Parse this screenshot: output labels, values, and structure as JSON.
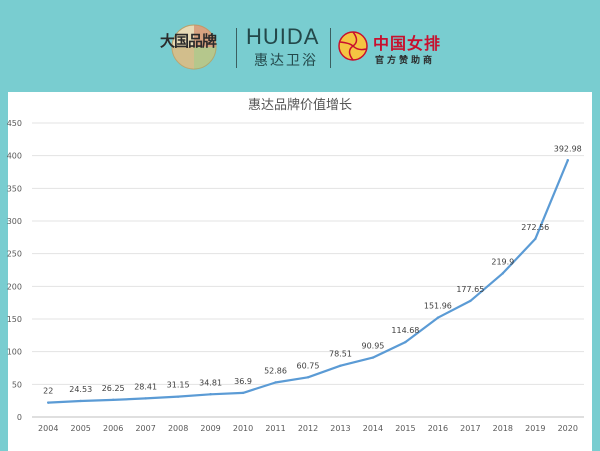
{
  "header": {
    "brand_seal_text": "大国品牌",
    "huida_logo": "HUIDA",
    "huida_cn": "惠达卫浴",
    "sponsor_main": "中国女排",
    "sponsor_sub": "官方赞助商",
    "icons": [
      "brand-seal-icon",
      "volleyball-emblem-icon"
    ]
  },
  "colors": {
    "background": "#79cdd0",
    "line": "#5b9bd5",
    "sponsor_red": "#c8102e"
  },
  "chart_data": {
    "type": "line",
    "title": "惠达品牌价值增长",
    "xlabel": "",
    "ylabel": "",
    "categories": [
      "2004",
      "2005",
      "2006",
      "2007",
      "2008",
      "2009",
      "2010",
      "2011",
      "2012",
      "2013",
      "2014",
      "2015",
      "2016",
      "2017",
      "2018",
      "2019",
      "2020"
    ],
    "values": [
      22,
      24.53,
      26.25,
      28.41,
      31.15,
      34.81,
      36.9,
      52.86,
      60.75,
      78.51,
      90.95,
      114.68,
      151.96,
      177.65,
      219.9,
      272.56,
      392.98
    ],
    "data_labels": [
      "22",
      "24.53",
      "26.25",
      "28.41",
      "31.15",
      "34.81",
      "36.9",
      "52.86",
      "60.75",
      "78.51",
      "90.95",
      "114.68",
      "151.96",
      "177.65",
      "219.9",
      "272.56",
      "392.98"
    ],
    "ylim": [
      0,
      450
    ],
    "yticks": [
      "0",
      "50",
      "100",
      "150",
      "200",
      "250",
      "300",
      "350",
      "400",
      "450"
    ],
    "grid": true,
    "legend": "none"
  }
}
